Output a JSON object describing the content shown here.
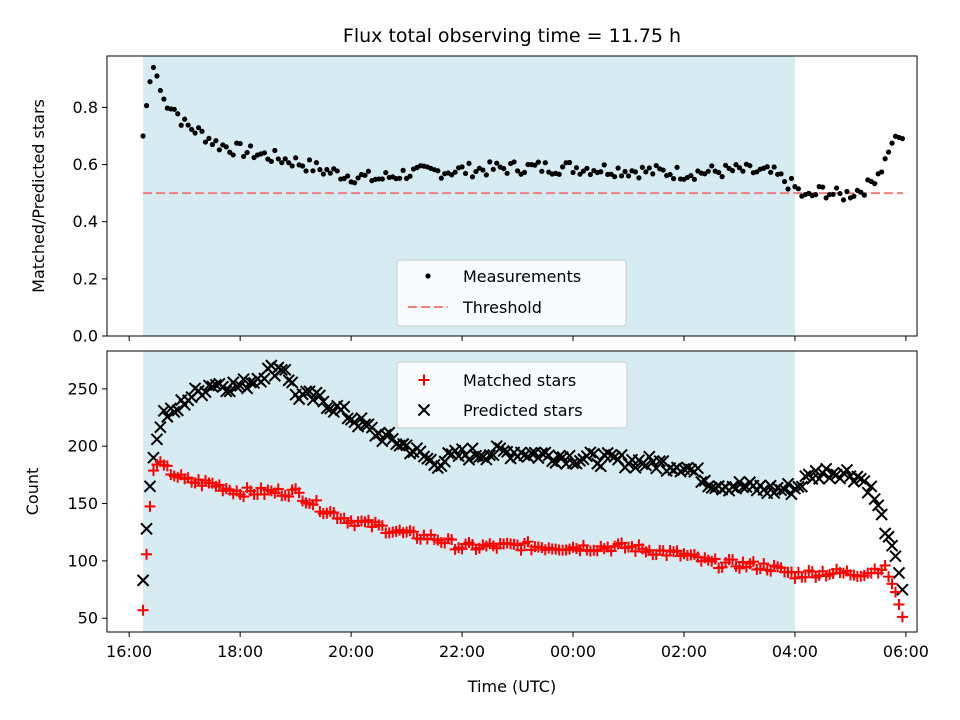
{
  "chart_data": [
    {
      "type": "scatter",
      "title": "Flux total observing time = 11.75 h",
      "xlabel": "",
      "ylabel": "Matched/Predicted stars",
      "x_unit": "hours after 16:00 UTC",
      "xlim": [
        -0.4,
        14.2
      ],
      "ylim": [
        0,
        0.98
      ],
      "yticks": [
        0.0,
        0.2,
        0.4,
        0.6,
        0.8
      ],
      "ytick_labels": [
        "0.0",
        "0.2",
        "0.4",
        "0.6",
        "0.8"
      ],
      "shaded_span": [
        0.25,
        12.0
      ],
      "shade_color": "#add8e6",
      "series": [
        {
          "name": "Measurements",
          "marker": "dot",
          "color": "#000000",
          "anchors_x": [
            0.25,
            0.35,
            0.45,
            0.6,
            0.8,
            1.0,
            1.3,
            1.6,
            2.0,
            2.5,
            3.0,
            3.5,
            4.0,
            4.5,
            5.0,
            6.0,
            7.0,
            8.0,
            9.0,
            10.0,
            11.0,
            11.6,
            12.0,
            12.2,
            12.5,
            12.8,
            13.0,
            13.3,
            13.6,
            13.8,
            13.95
          ],
          "anchors_y": [
            0.7,
            0.87,
            0.95,
            0.83,
            0.8,
            0.74,
            0.71,
            0.67,
            0.65,
            0.63,
            0.61,
            0.58,
            0.56,
            0.55,
            0.57,
            0.58,
            0.59,
            0.59,
            0.58,
            0.57,
            0.58,
            0.57,
            0.52,
            0.48,
            0.51,
            0.49,
            0.5,
            0.52,
            0.6,
            0.7,
            0.69
          ]
        },
        {
          "name": "Threshold",
          "marker": "dashed-line",
          "color": "#f08080",
          "x": [
            0.25,
            13.95
          ],
          "y": [
            0.5,
            0.5
          ]
        }
      ],
      "legend": {
        "placement": "lower-center",
        "entries": [
          "Measurements",
          "Threshold"
        ]
      }
    },
    {
      "type": "scatter",
      "title": "",
      "xlabel": "Time (UTC)",
      "ylabel": "Count",
      "x_unit": "hours after 16:00 UTC",
      "xlim": [
        -0.4,
        14.2
      ],
      "ylim": [
        38,
        283
      ],
      "xticks": [
        0,
        2,
        4,
        6,
        8,
        10,
        12,
        14
      ],
      "xtick_labels": [
        "16:00",
        "18:00",
        "20:00",
        "22:00",
        "00:00",
        "02:00",
        "04:00",
        "06:00"
      ],
      "yticks": [
        50,
        100,
        150,
        200,
        250
      ],
      "ytick_labels": [
        "50",
        "100",
        "150",
        "200",
        "250"
      ],
      "shaded_span": [
        0.25,
        12.0
      ],
      "shade_color": "#add8e6",
      "series": [
        {
          "name": "Matched stars",
          "marker": "plus",
          "color": "#ff0000",
          "anchors_x": [
            0.25,
            0.35,
            0.45,
            0.6,
            0.8,
            1.0,
            1.5,
            2.0,
            2.5,
            3.0,
            3.5,
            4.0,
            4.5,
            5.0,
            5.5,
            6.0,
            7.0,
            8.0,
            9.0,
            10.0,
            10.5,
            11.0,
            11.5,
            12.0,
            12.5,
            13.0,
            13.3,
            13.6,
            13.8,
            13.95
          ],
          "anchors_y": [
            57,
            135,
            185,
            182,
            176,
            170,
            167,
            160,
            160,
            160,
            145,
            135,
            130,
            123,
            120,
            112,
            113,
            112,
            112,
            105,
            98,
            97,
            95,
            88,
            90,
            89,
            90,
            95,
            75,
            49
          ]
        },
        {
          "name": "Predicted stars",
          "marker": "x",
          "color": "#000000",
          "anchors_x": [
            0.25,
            0.35,
            0.45,
            0.6,
            0.8,
            1.0,
            1.5,
            2.0,
            2.5,
            2.8,
            3.0,
            3.5,
            4.0,
            4.5,
            5.0,
            5.5,
            6.0,
            7.0,
            8.0,
            9.0,
            10.0,
            10.5,
            11.0,
            11.5,
            12.0,
            12.3,
            12.5,
            12.8,
            13.0,
            13.2,
            13.4,
            13.6,
            13.8,
            13.95
          ],
          "anchors_y": [
            83,
            155,
            195,
            228,
            228,
            240,
            255,
            252,
            265,
            270,
            245,
            240,
            225,
            210,
            200,
            185,
            193,
            195,
            190,
            187,
            183,
            168,
            165,
            162,
            163,
            175,
            177,
            178,
            176,
            172,
            160,
            132,
            107,
            72
          ]
        }
      ],
      "legend": {
        "placement": "top-center",
        "entries": [
          "Matched stars",
          "Predicted stars"
        ]
      }
    }
  ]
}
